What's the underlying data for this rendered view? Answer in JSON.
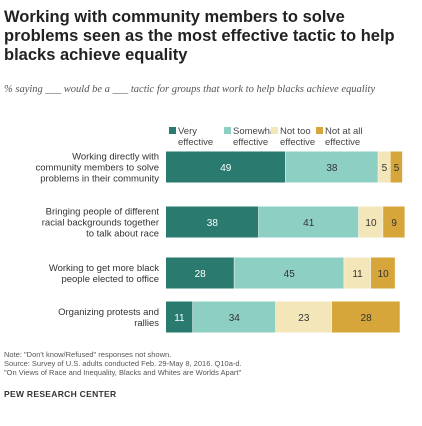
{
  "chart_data": {
    "type": "bar",
    "stacked": true,
    "orientation": "horizontal",
    "title": "Working with community members to solve problems seen as the most effective tactic to help blacks achieve equality",
    "subtitle": "% saying ___ would be a ___ tactic for groups that work to help blacks achieve equality",
    "categories": [
      "Working directly with community members to solve problems in their community",
      "Bringing people of different racial backgrounds together to talk about race",
      "Working to get more black people elected to office",
      "Organizing protests and rallies"
    ],
    "category_lines": [
      [
        "Working directly with",
        "community members to solve",
        "problems in their community"
      ],
      [
        "Bringing people of different",
        "racial backgrounds together",
        "to talk about race"
      ],
      [
        "Working to get more black",
        "people elected to office"
      ],
      [
        "Organizing protests and",
        "rallies"
      ]
    ],
    "series": [
      {
        "name": "Very effective",
        "name_lines": [
          "Very",
          "effective"
        ],
        "color": "#2a7a6f",
        "label_color": "#ffffff",
        "values": [
          49,
          38,
          28,
          11
        ]
      },
      {
        "name": "Somewhat effective",
        "name_lines": [
          "Somewhat",
          "effective"
        ],
        "color": "#8ecfc4",
        "label_color": "#333333",
        "values": [
          38,
          41,
          45,
          34
        ]
      },
      {
        "name": "Not too effective",
        "name_lines": [
          "Not too",
          "effective"
        ],
        "color": "#f3e6b8",
        "label_color": "#333333",
        "values": [
          5,
          10,
          11,
          23
        ]
      },
      {
        "name": "Not at all effective",
        "name_lines": [
          "Not at all",
          "effective"
        ],
        "color": "#d6a63a",
        "label_color": "#333333",
        "values": [
          5,
          9,
          10,
          28
        ]
      }
    ],
    "xlim": [
      0,
      100
    ],
    "legend_position": "top"
  },
  "notes": [
    "Note: \"Don't know/Refused\" responses not shown.",
    "Source: Survey of U.S. adults conducted Feb. 29-May 8, 2016. Q10a-d.",
    "\"On Views of Race and Inequality, Blacks and Whites are Worlds Apart\""
  ],
  "brand": "PEW RESEARCH CENTER"
}
